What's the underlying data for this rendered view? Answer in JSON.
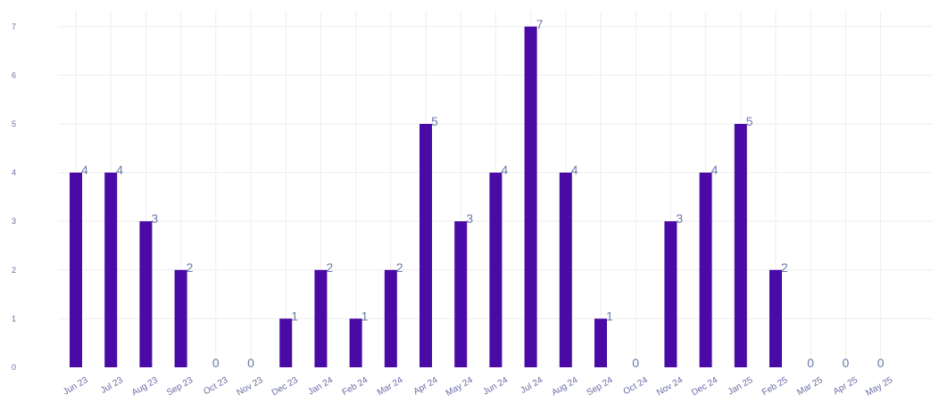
{
  "chart_data": {
    "type": "bar",
    "categories": [
      "Jun 23",
      "Jul 23",
      "Aug 23",
      "Sep 23",
      "Oct 23",
      "Nov 23",
      "Dec 23",
      "Jan 24",
      "Feb 24",
      "Mar 24",
      "Apr 24",
      "May 24",
      "Jun 24",
      "Jul 24",
      "Aug 24",
      "Sep 24",
      "Oct 24",
      "Nov 24",
      "Dec 24",
      "Jan 25",
      "Feb 25",
      "Mar 25",
      "Apr 25",
      "May 25"
    ],
    "values": [
      4,
      4,
      3,
      2,
      0,
      0,
      1,
      2,
      1,
      2,
      5,
      3,
      4,
      7,
      4,
      1,
      0,
      3,
      4,
      5,
      2,
      0,
      0,
      0
    ],
    "data_labels": [
      "4",
      "4",
      "3",
      "2",
      "0",
      "0",
      "1",
      "2",
      "1",
      "2",
      "5",
      "3",
      "4",
      "7",
      "4",
      "1",
      "0",
      "3",
      "4",
      "5",
      "2",
      "0",
      "0",
      "0"
    ],
    "y_ticks": [
      "0",
      "1",
      "2",
      "3",
      "4",
      "5",
      "6",
      "7"
    ],
    "ylim": [
      0,
      7
    ],
    "grid": true,
    "legend": "none",
    "colors": {
      "bar": "#4a0aa6",
      "label": "#6b7bab",
      "tick": "#6b6ba6",
      "grid": "#eeeeee"
    }
  }
}
